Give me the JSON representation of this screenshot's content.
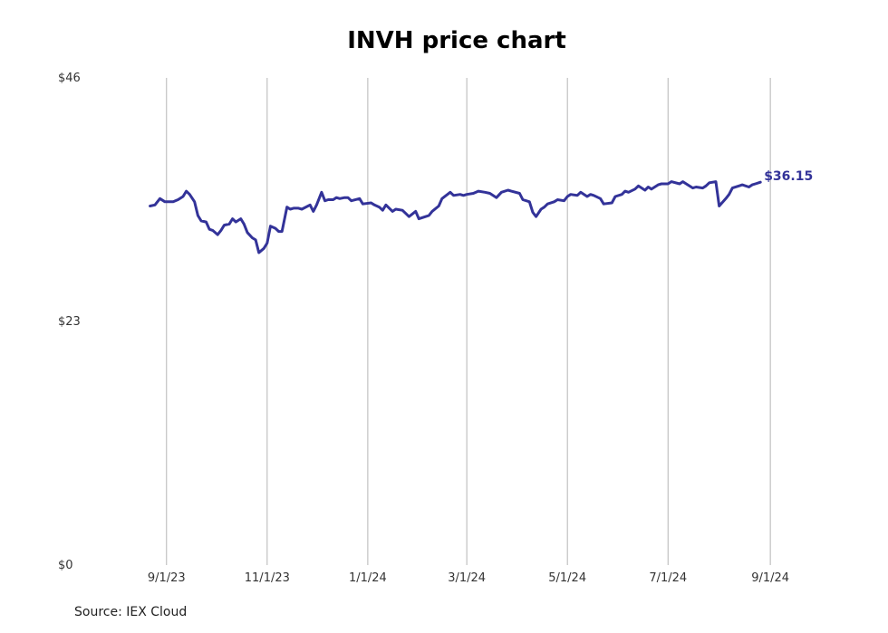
{
  "chart_data": {
    "type": "line",
    "title": "INVH price chart",
    "source": "Source: IEX Cloud",
    "xlabel": "",
    "ylabel": "",
    "ylim": [
      0,
      46
    ],
    "yticks": [
      {
        "value": 0,
        "label": "$0"
      },
      {
        "value": 23,
        "label": "$23"
      },
      {
        "value": 46,
        "label": "$46"
      }
    ],
    "xlim": [
      "2023-08-14",
      "2024-09-24"
    ],
    "xticks": [
      {
        "date": "2023-09-01",
        "label": "9/1/23"
      },
      {
        "date": "2023-11-01",
        "label": "11/1/23"
      },
      {
        "date": "2024-01-01",
        "label": "1/1/24"
      },
      {
        "date": "2024-03-01",
        "label": "3/1/24"
      },
      {
        "date": "2024-05-01",
        "label": "5/1/24"
      },
      {
        "date": "2024-07-01",
        "label": "7/1/24"
      },
      {
        "date": "2024-09-01",
        "label": "9/1/24"
      }
    ],
    "grid": {
      "vertical": true,
      "horizontal": false
    },
    "line_color": "#333399",
    "end_label": "$36.15",
    "series": [
      {
        "points": [
          [
            "2023-08-22",
            33.9
          ],
          [
            "2023-08-25",
            34.0
          ],
          [
            "2023-08-28",
            34.6
          ],
          [
            "2023-08-31",
            34.3
          ],
          [
            "2023-09-05",
            34.3
          ],
          [
            "2023-09-08",
            34.5
          ],
          [
            "2023-09-11",
            34.8
          ],
          [
            "2023-09-13",
            35.3
          ],
          [
            "2023-09-15",
            35.0
          ],
          [
            "2023-09-18",
            34.3
          ],
          [
            "2023-09-20",
            33.0
          ],
          [
            "2023-09-22",
            32.5
          ],
          [
            "2023-09-25",
            32.4
          ],
          [
            "2023-09-27",
            31.7
          ],
          [
            "2023-09-29",
            31.6
          ],
          [
            "2023-10-02",
            31.2
          ],
          [
            "2023-10-04",
            31.6
          ],
          [
            "2023-10-06",
            32.1
          ],
          [
            "2023-10-09",
            32.2
          ],
          [
            "2023-10-11",
            32.7
          ],
          [
            "2023-10-13",
            32.4
          ],
          [
            "2023-10-16",
            32.7
          ],
          [
            "2023-10-18",
            32.2
          ],
          [
            "2023-10-20",
            31.4
          ],
          [
            "2023-10-23",
            30.9
          ],
          [
            "2023-10-25",
            30.7
          ],
          [
            "2023-10-27",
            29.5
          ],
          [
            "2023-10-30",
            29.9
          ],
          [
            "2023-11-01",
            30.4
          ],
          [
            "2023-11-03",
            32.0
          ],
          [
            "2023-11-06",
            31.8
          ],
          [
            "2023-11-08",
            31.5
          ],
          [
            "2023-11-10",
            31.5
          ],
          [
            "2023-11-13",
            33.8
          ],
          [
            "2023-11-15",
            33.6
          ],
          [
            "2023-11-17",
            33.7
          ],
          [
            "2023-11-20",
            33.7
          ],
          [
            "2023-11-22",
            33.6
          ],
          [
            "2023-11-27",
            34.0
          ],
          [
            "2023-11-29",
            33.4
          ],
          [
            "2023-12-01",
            34.0
          ],
          [
            "2023-12-04",
            35.2
          ],
          [
            "2023-12-06",
            34.4
          ],
          [
            "2023-12-08",
            34.5
          ],
          [
            "2023-12-11",
            34.5
          ],
          [
            "2023-12-13",
            34.7
          ],
          [
            "2023-12-15",
            34.6
          ],
          [
            "2023-12-18",
            34.7
          ],
          [
            "2023-12-20",
            34.7
          ],
          [
            "2023-12-22",
            34.4
          ],
          [
            "2023-12-27",
            34.6
          ],
          [
            "2023-12-29",
            34.1
          ],
          [
            "2024-01-03",
            34.2
          ],
          [
            "2024-01-05",
            34.0
          ],
          [
            "2024-01-08",
            33.8
          ],
          [
            "2024-01-10",
            33.5
          ],
          [
            "2024-01-12",
            34.0
          ],
          [
            "2024-01-16",
            33.4
          ],
          [
            "2024-01-18",
            33.6
          ],
          [
            "2024-01-22",
            33.5
          ],
          [
            "2024-01-24",
            33.2
          ],
          [
            "2024-01-26",
            32.9
          ],
          [
            "2024-01-30",
            33.4
          ],
          [
            "2024-02-01",
            32.7
          ],
          [
            "2024-02-05",
            32.9
          ],
          [
            "2024-02-07",
            33.0
          ],
          [
            "2024-02-09",
            33.4
          ],
          [
            "2024-02-13",
            33.9
          ],
          [
            "2024-02-15",
            34.6
          ],
          [
            "2024-02-20",
            35.2
          ],
          [
            "2024-02-22",
            34.9
          ],
          [
            "2024-02-26",
            35.0
          ],
          [
            "2024-02-28",
            34.9
          ],
          [
            "2024-03-01",
            35.0
          ],
          [
            "2024-03-05",
            35.1
          ],
          [
            "2024-03-08",
            35.3
          ],
          [
            "2024-03-12",
            35.2
          ],
          [
            "2024-03-15",
            35.1
          ],
          [
            "2024-03-19",
            34.7
          ],
          [
            "2024-03-22",
            35.2
          ],
          [
            "2024-03-26",
            35.4
          ],
          [
            "2024-03-28",
            35.3
          ],
          [
            "2024-04-02",
            35.1
          ],
          [
            "2024-04-04",
            34.5
          ],
          [
            "2024-04-08",
            34.3
          ],
          [
            "2024-04-10",
            33.3
          ],
          [
            "2024-04-12",
            32.9
          ],
          [
            "2024-04-15",
            33.6
          ],
          [
            "2024-04-17",
            33.8
          ],
          [
            "2024-04-19",
            34.1
          ],
          [
            "2024-04-23",
            34.3
          ],
          [
            "2024-04-25",
            34.5
          ],
          [
            "2024-04-29",
            34.4
          ],
          [
            "2024-05-01",
            34.8
          ],
          [
            "2024-05-03",
            35.0
          ],
          [
            "2024-05-07",
            34.9
          ],
          [
            "2024-05-09",
            35.2
          ],
          [
            "2024-05-13",
            34.8
          ],
          [
            "2024-05-15",
            35.0
          ],
          [
            "2024-05-17",
            34.9
          ],
          [
            "2024-05-21",
            34.6
          ],
          [
            "2024-05-23",
            34.1
          ],
          [
            "2024-05-28",
            34.2
          ],
          [
            "2024-05-30",
            34.8
          ],
          [
            "2024-06-03",
            35.0
          ],
          [
            "2024-06-05",
            35.3
          ],
          [
            "2024-06-07",
            35.2
          ],
          [
            "2024-06-11",
            35.5
          ],
          [
            "2024-06-13",
            35.8
          ],
          [
            "2024-06-17",
            35.4
          ],
          [
            "2024-06-19",
            35.7
          ],
          [
            "2024-06-21",
            35.5
          ],
          [
            "2024-06-25",
            35.9
          ],
          [
            "2024-06-27",
            36.0
          ],
          [
            "2024-07-01",
            36.0
          ],
          [
            "2024-07-03",
            36.2
          ],
          [
            "2024-07-08",
            36.0
          ],
          [
            "2024-07-10",
            36.2
          ],
          [
            "2024-07-12",
            36.0
          ],
          [
            "2024-07-16",
            35.6
          ],
          [
            "2024-07-18",
            35.7
          ],
          [
            "2024-07-22",
            35.6
          ],
          [
            "2024-07-24",
            35.8
          ],
          [
            "2024-07-26",
            36.1
          ],
          [
            "2024-07-30",
            36.2
          ],
          [
            "2024-08-01",
            33.9
          ],
          [
            "2024-08-05",
            34.6
          ],
          [
            "2024-08-07",
            35.0
          ],
          [
            "2024-08-09",
            35.6
          ],
          [
            "2024-08-13",
            35.8
          ],
          [
            "2024-08-15",
            35.9
          ],
          [
            "2024-08-19",
            35.7
          ],
          [
            "2024-08-21",
            35.9
          ],
          [
            "2024-08-23",
            36.0
          ],
          [
            "2024-08-26",
            36.15
          ]
        ]
      }
    ]
  }
}
